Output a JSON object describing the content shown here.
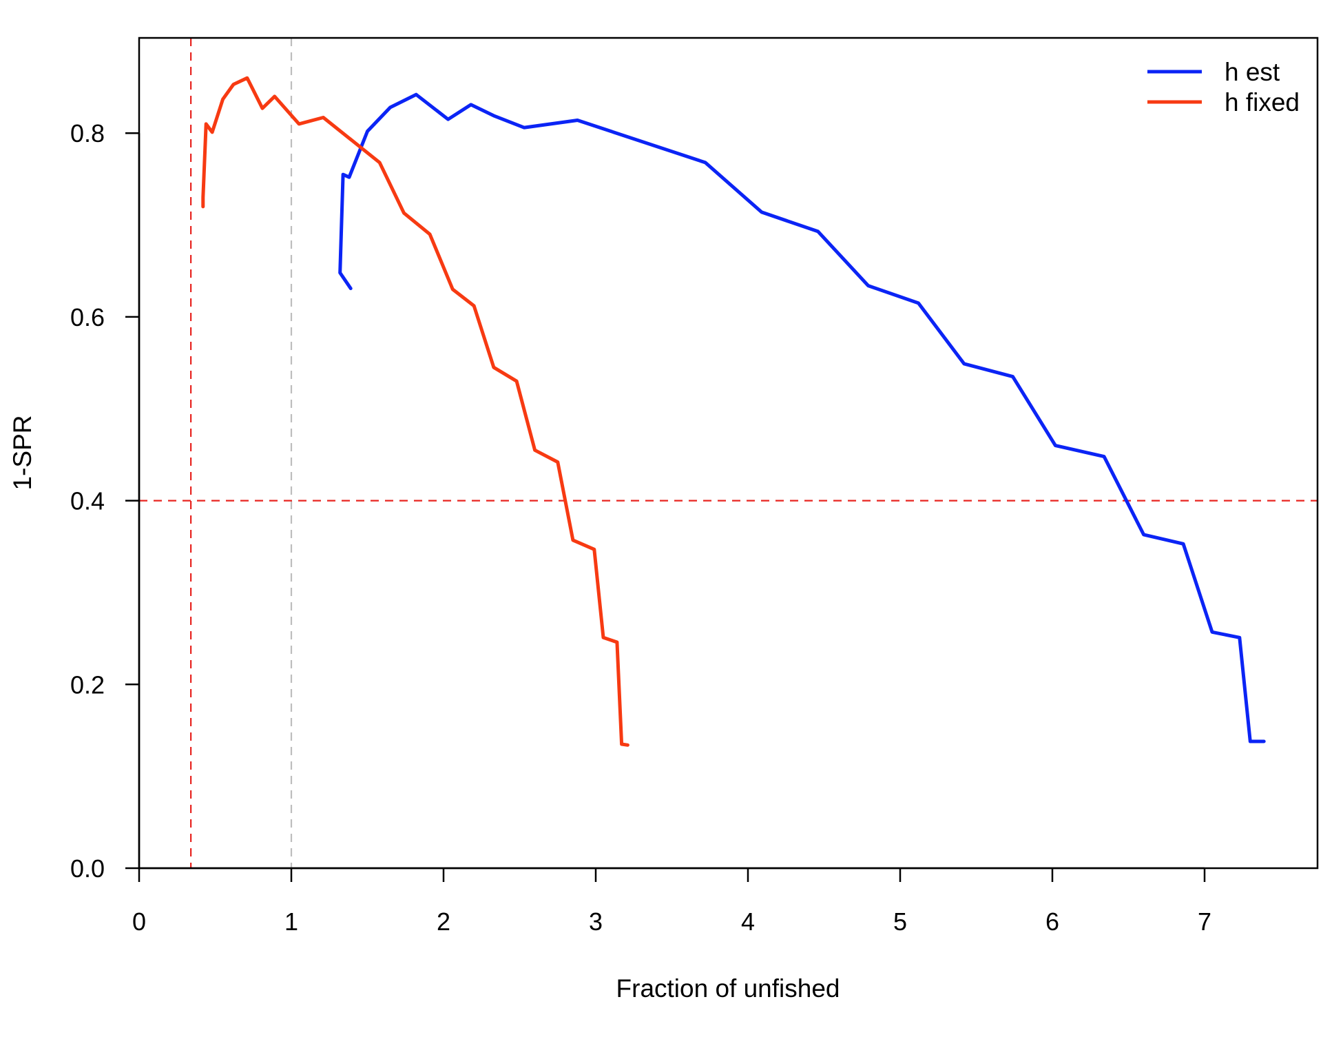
{
  "chart_data": {
    "type": "line",
    "title": "",
    "xlabel": "Fraction of unfished",
    "ylabel": "1-SPR",
    "xlim": [
      0,
      7.75
    ],
    "ylim": [
      0,
      0.9
    ],
    "xticks": [
      "0",
      "1",
      "2",
      "3",
      "4",
      "5",
      "6",
      "7"
    ],
    "yticks": [
      "0.0",
      "0.2",
      "0.4",
      "0.6",
      "0.8"
    ],
    "grid": false,
    "legend_position": "top-right",
    "reference_lines": [
      {
        "orientation": "vertical",
        "value": 0.34,
        "color": "#e8231f",
        "style": "dashed"
      },
      {
        "orientation": "vertical",
        "value": 1.0,
        "color": "#bdbdbd",
        "style": "dashed"
      },
      {
        "orientation": "horizontal",
        "value": 0.4,
        "color": "#e8231f",
        "style": "dashed"
      }
    ],
    "series": [
      {
        "name": "h est",
        "color": "#0b24f5",
        "points": [
          [
            1.39,
            0.631
          ],
          [
            1.32,
            0.648
          ],
          [
            1.34,
            0.755
          ],
          [
            1.38,
            0.752
          ],
          [
            1.5,
            0.802
          ],
          [
            1.65,
            0.828
          ],
          [
            1.82,
            0.842
          ],
          [
            2.03,
            0.815
          ],
          [
            2.18,
            0.831
          ],
          [
            2.33,
            0.819
          ],
          [
            2.53,
            0.806
          ],
          [
            2.88,
            0.814
          ],
          [
            3.72,
            0.768
          ],
          [
            4.09,
            0.714
          ],
          [
            4.46,
            0.693
          ],
          [
            4.79,
            0.634
          ],
          [
            5.12,
            0.615
          ],
          [
            5.42,
            0.549
          ],
          [
            5.74,
            0.535
          ],
          [
            6.02,
            0.46
          ],
          [
            6.34,
            0.448
          ],
          [
            6.6,
            0.363
          ],
          [
            6.86,
            0.353
          ],
          [
            7.05,
            0.257
          ],
          [
            7.23,
            0.251
          ],
          [
            7.3,
            0.138
          ],
          [
            7.39,
            0.138
          ]
        ]
      },
      {
        "name": "h fixed",
        "color": "#f73a12",
        "points": [
          [
            0.42,
            0.72
          ],
          [
            0.42,
            0.73
          ],
          [
            0.44,
            0.81
          ],
          [
            0.48,
            0.801
          ],
          [
            0.55,
            0.837
          ],
          [
            0.62,
            0.853
          ],
          [
            0.71,
            0.86
          ],
          [
            0.81,
            0.827
          ],
          [
            0.89,
            0.84
          ],
          [
            1.05,
            0.81
          ],
          [
            1.21,
            0.817
          ],
          [
            1.58,
            0.768
          ],
          [
            1.74,
            0.713
          ],
          [
            1.91,
            0.69
          ],
          [
            2.06,
            0.63
          ],
          [
            2.2,
            0.612
          ],
          [
            2.33,
            0.545
          ],
          [
            2.48,
            0.53
          ],
          [
            2.6,
            0.455
          ],
          [
            2.75,
            0.442
          ],
          [
            2.85,
            0.357
          ],
          [
            2.99,
            0.347
          ],
          [
            3.05,
            0.251
          ],
          [
            3.14,
            0.246
          ],
          [
            3.17,
            0.135
          ],
          [
            3.21,
            0.134
          ]
        ]
      }
    ]
  }
}
